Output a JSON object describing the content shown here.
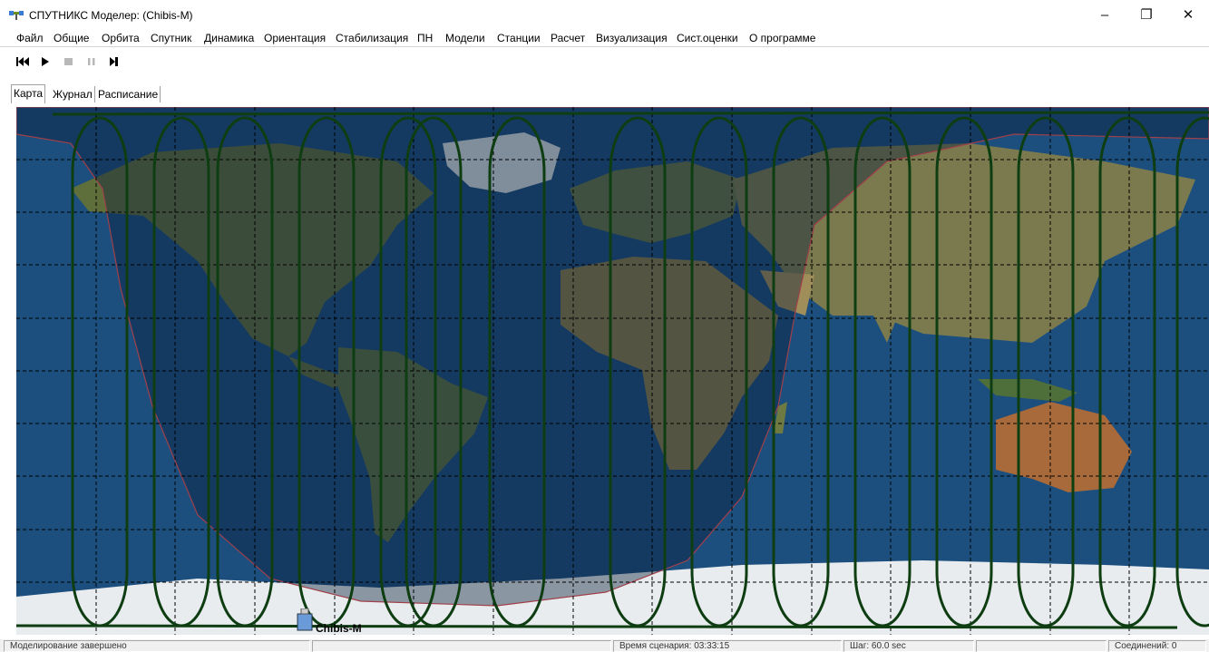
{
  "window": {
    "title": "СПУТНИКС Моделер:  (Chibis-M)",
    "minimize_glyph": "–",
    "maximize_glyph": "❐",
    "close_glyph": "✕"
  },
  "menu": {
    "items": [
      "Файл",
      "Общие",
      "Орбита",
      "Спутник",
      "Динамика",
      "Ориентация",
      "Стабилизация",
      "ПН",
      "Модели",
      "Станции",
      "Расчет",
      "Визуализация",
      "Сист.оценки",
      "О программе"
    ]
  },
  "toolbar": {
    "icons": [
      "skip-to-start-icon",
      "play-icon",
      "stop-icon",
      "pause-icon",
      "step-forward-icon"
    ]
  },
  "tabs": [
    "Карта",
    "Журнал",
    "Расписание"
  ],
  "map": {
    "satellite_label": "Chibis-M",
    "ocean_color": "#1c4f7e",
    "track_color": "#0e3d12",
    "terminator_color": "#a0404a"
  },
  "status": {
    "message": "Моделирование завершено",
    "cell2": "",
    "scenario_time": "Время сценария: 03:33:15",
    "step": "Шаг: 60.0 sec",
    "cell5": "",
    "connections": "Соединений: 0"
  }
}
